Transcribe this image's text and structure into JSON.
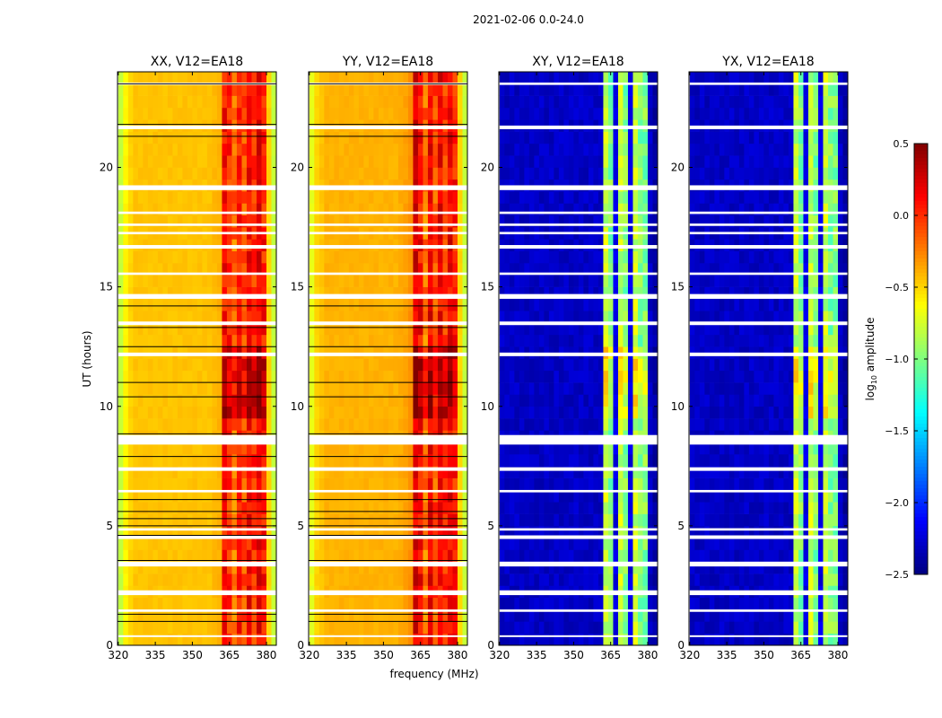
{
  "chart_data": {
    "type": "heatmap",
    "title": "2021-02-06 0.0-24.0",
    "xlabel": "frequency (MHz)",
    "ylabel": "UT (hours)",
    "xlim": [
      319.7,
      384
    ],
    "ylim": [
      0,
      24
    ],
    "xticks": [
      "320",
      "335",
      "350",
      "365",
      "380"
    ],
    "xtick_values": [
      320,
      335,
      350,
      365,
      380
    ],
    "yticks": [
      "0",
      "5",
      "10",
      "15",
      "20"
    ],
    "ytick_values": [
      0,
      5,
      10,
      15,
      20
    ],
    "freq_bins_start": 320,
    "freq_bin_width": 2,
    "time_bin_width": 0.5,
    "panels": [
      {
        "title": "XX, V12=EA18",
        "profile": [
          -0.8,
          -0.6,
          -0.5,
          -0.45,
          -0.45,
          -0.45,
          -0.45,
          -0.45,
          -0.45,
          -0.45,
          -0.45,
          -0.45,
          -0.45,
          -0.45,
          -0.45,
          -0.45,
          -0.45,
          -0.45,
          -0.45,
          -0.42,
          -0.4,
          0.1,
          0.0,
          -0.2,
          0.05,
          -0.1,
          0.1,
          0.0,
          0.15,
          0.05,
          -0.5,
          -0.8
        ],
        "show_yticks": true
      },
      {
        "title": "YY, V12=EA18",
        "profile": [
          -0.7,
          -0.5,
          -0.45,
          -0.4,
          -0.4,
          -0.4,
          -0.4,
          -0.4,
          -0.4,
          -0.4,
          -0.4,
          -0.4,
          -0.4,
          -0.4,
          -0.4,
          -0.4,
          -0.4,
          -0.4,
          -0.38,
          -0.35,
          -0.3,
          0.2,
          0.1,
          -0.2,
          0.15,
          -0.1,
          0.15,
          0.0,
          0.15,
          0.05,
          -0.5,
          -0.8
        ],
        "show_yticks": true
      },
      {
        "title": "XY, V12=EA18",
        "profile": [
          -2.3,
          -2.3,
          -2.3,
          -2.3,
          -2.3,
          -2.3,
          -2.3,
          -2.3,
          -2.3,
          -2.3,
          -2.3,
          -2.3,
          -2.3,
          -2.3,
          -2.3,
          -2.3,
          -2.3,
          -2.3,
          -2.3,
          -2.3,
          -2.3,
          -0.8,
          -1.0,
          -2.2,
          -0.8,
          -1.0,
          -2.2,
          -0.8,
          -1.0,
          -1.0,
          -2.3,
          -2.4
        ],
        "show_yticks": true
      },
      {
        "title": "YX, V12=EA18",
        "profile": [
          -2.3,
          -2.3,
          -2.3,
          -2.3,
          -2.3,
          -2.3,
          -2.3,
          -2.3,
          -2.3,
          -2.3,
          -2.3,
          -2.3,
          -2.3,
          -2.3,
          -2.3,
          -2.3,
          -2.3,
          -2.3,
          -2.3,
          -2.3,
          -2.3,
          -0.8,
          -1.0,
          -2.2,
          -0.8,
          -1.0,
          -2.2,
          -0.8,
          -1.0,
          -1.0,
          -2.3,
          -2.4
        ],
        "show_yticks": true
      }
    ],
    "flagged_hours": [
      [
        0.35,
        0.42
      ],
      [
        1.4,
        1.5
      ],
      [
        2.1,
        2.3
      ],
      [
        3.3,
        3.5
      ],
      [
        4.45,
        4.6
      ],
      [
        4.8,
        4.9
      ],
      [
        6.4,
        6.5
      ],
      [
        7.3,
        7.45
      ],
      [
        8.4,
        8.8
      ],
      [
        12.1,
        12.25
      ],
      [
        13.4,
        13.55
      ],
      [
        14.5,
        14.7
      ],
      [
        15.5,
        15.6
      ],
      [
        16.6,
        16.75
      ],
      [
        17.2,
        17.3
      ],
      [
        17.55,
        17.65
      ],
      [
        18.05,
        18.15
      ],
      [
        19.05,
        19.25
      ],
      [
        21.6,
        21.75
      ],
      [
        23.45,
        23.55
      ]
    ],
    "black_line_hours": [
      1.0,
      1.3,
      3.55,
      4.6,
      5.0,
      5.3,
      5.6,
      6.1,
      7.9,
      8.85,
      10.4,
      11.0,
      12.5,
      13.3,
      14.2,
      21.3,
      21.8,
      23.5
    ],
    "colorbar": {
      "label": "log10 amplitude",
      "range": [
        -2.5,
        0.5
      ],
      "ticks": [
        "0.5",
        "0.0",
        "−0.5",
        "−1.0",
        "−1.5",
        "−2.0",
        "−2.5"
      ],
      "tick_values": [
        0.5,
        0.0,
        -0.5,
        -1.0,
        -1.5,
        -2.0,
        -2.5
      ],
      "colormap": "jet"
    }
  }
}
